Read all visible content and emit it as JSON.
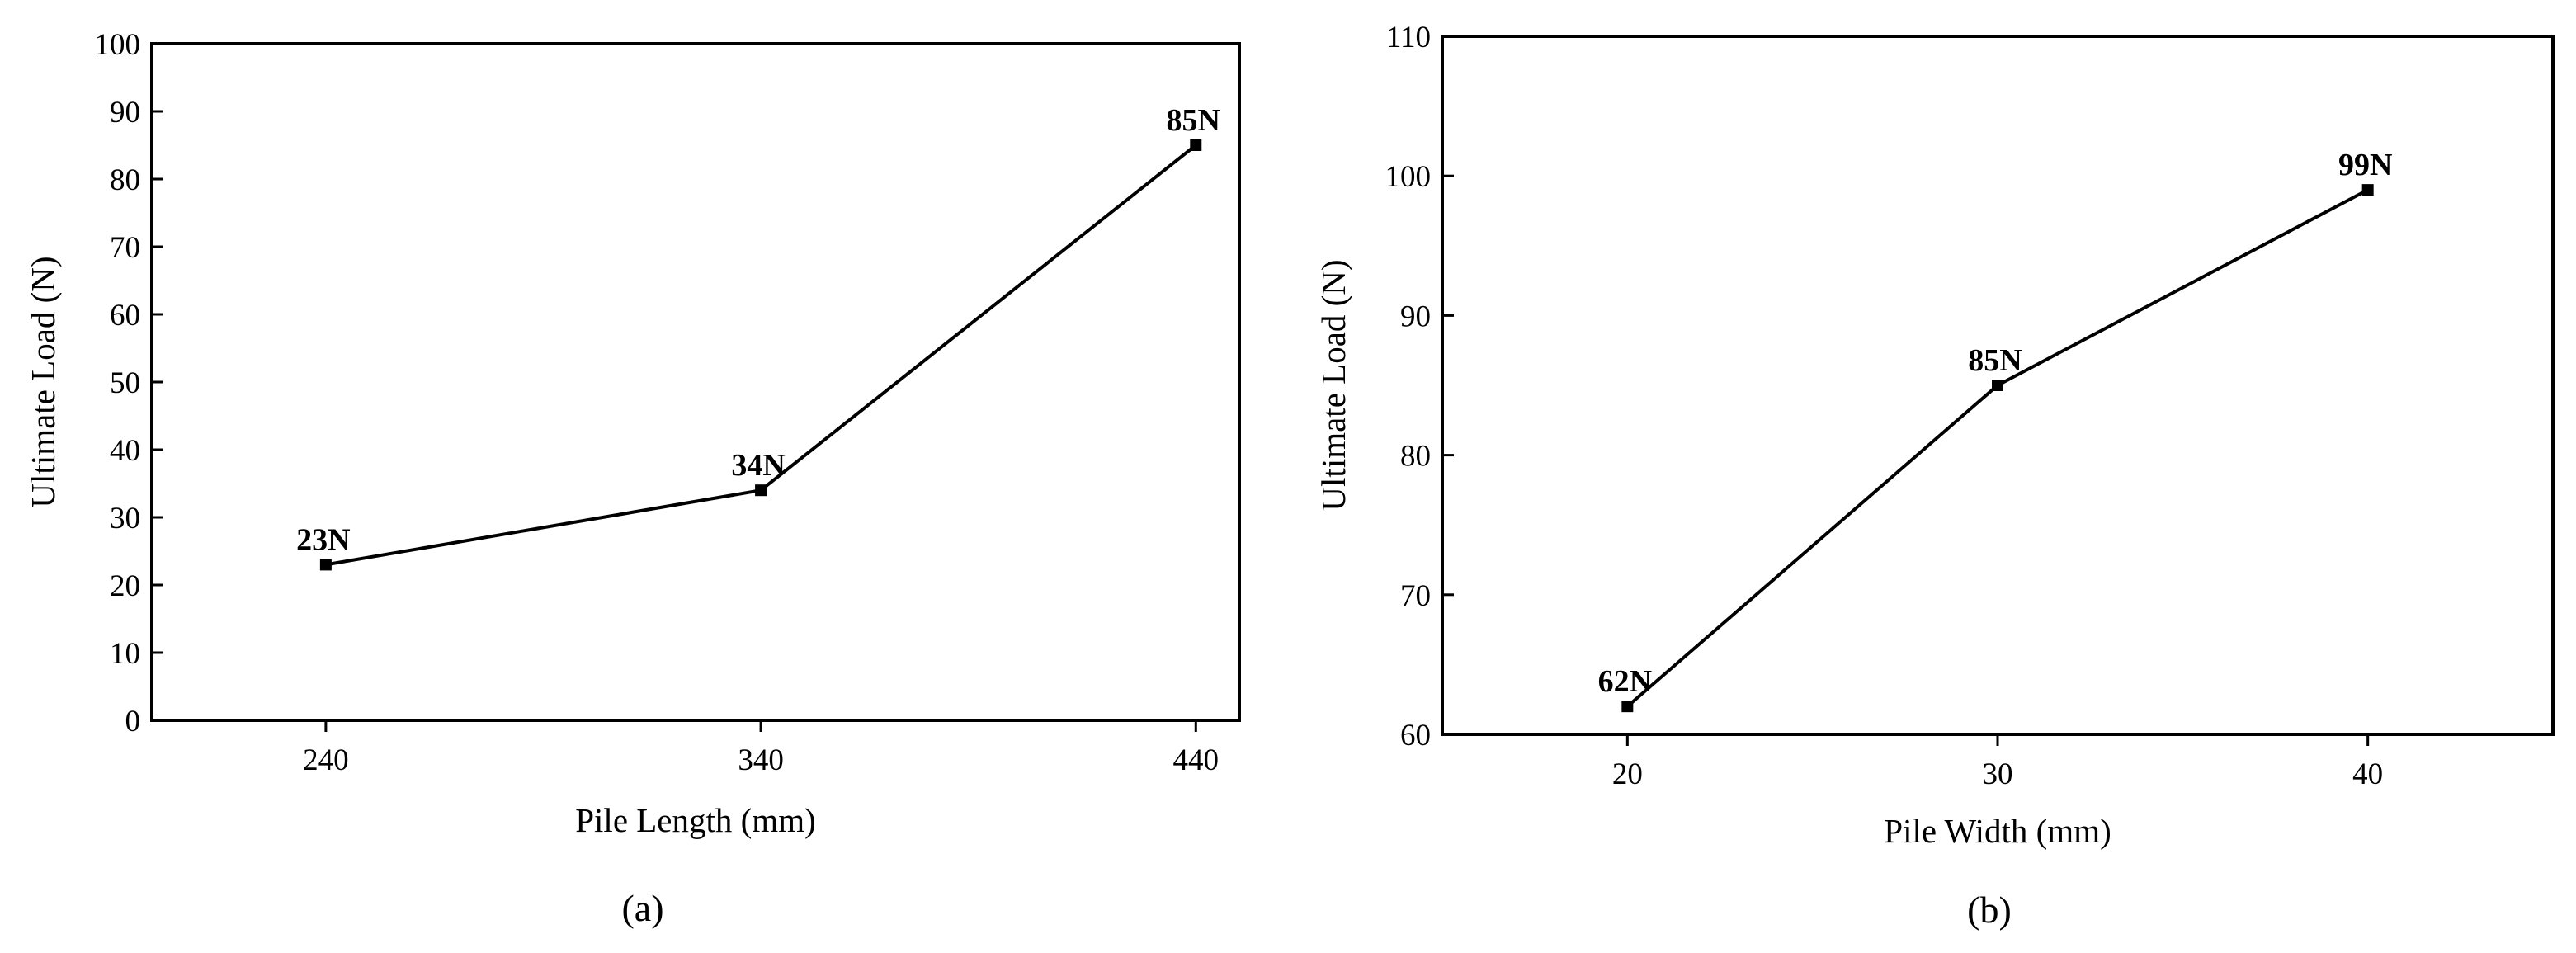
{
  "chart_data": [
    {
      "type": "line",
      "panel_label": "(a)",
      "xlabel": "Pile Length (mm)",
      "ylabel": "Ultimate Load (N)",
      "x": [
        240,
        340,
        440
      ],
      "values": [
        23,
        34,
        85
      ],
      "data_labels": [
        "23N",
        "34N",
        "85N"
      ],
      "xticks": [
        240,
        340,
        440
      ],
      "yticks": [
        0,
        10,
        20,
        30,
        40,
        50,
        60,
        70,
        80,
        90,
        100
      ],
      "xlim": [
        200,
        450
      ],
      "ylim": [
        0,
        100
      ],
      "grid": false,
      "marker": "square",
      "line_color": "#000000"
    },
    {
      "type": "line",
      "panel_label": "(b)",
      "xlabel": "Pile Width (mm)",
      "ylabel": "Ultimate Load (N)",
      "x": [
        20,
        30,
        40
      ],
      "values": [
        62,
        85,
        99
      ],
      "data_labels": [
        "62N",
        "85N",
        "99N"
      ],
      "xticks": [
        20,
        30,
        40
      ],
      "yticks": [
        60,
        70,
        80,
        90,
        100,
        110
      ],
      "xlim": [
        15,
        45
      ],
      "ylim": [
        60,
        110
      ],
      "grid": false,
      "marker": "square",
      "line_color": "#000000"
    }
  ]
}
